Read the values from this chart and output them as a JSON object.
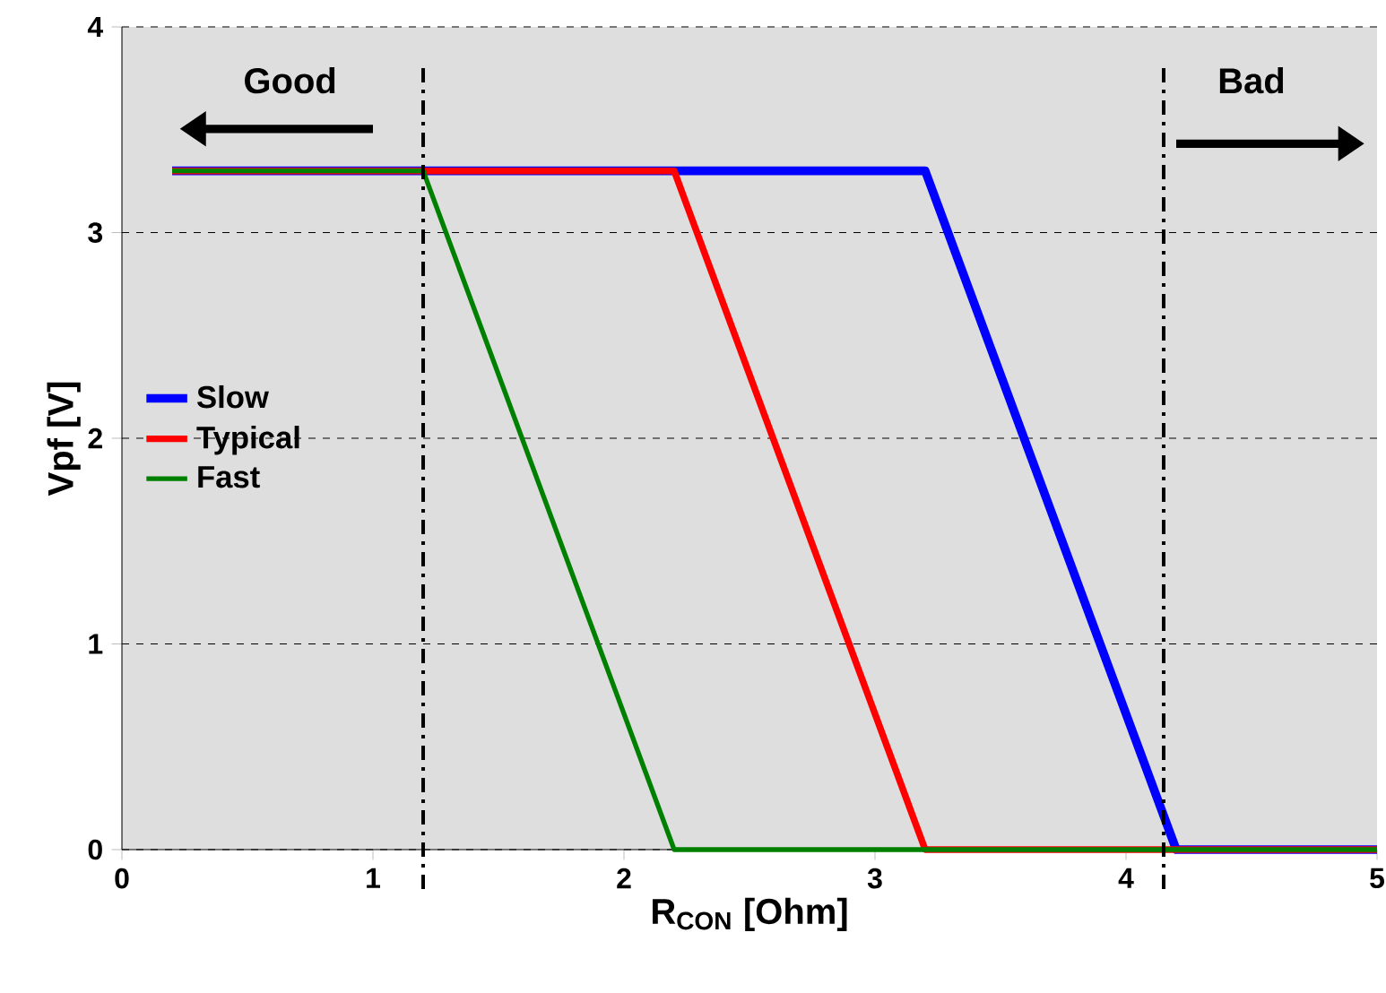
{
  "chart_data": {
    "type": "line",
    "xlabel": "R$_{CON}$ [Ohm]",
    "ylabel": "Vpf [V]",
    "xlim": [
      0,
      5
    ],
    "ylim": [
      0,
      4
    ],
    "xticks": [
      0,
      1,
      2,
      3,
      4,
      5
    ],
    "yticks": [
      0,
      1,
      2,
      3,
      4
    ],
    "grid": "y",
    "legend": "left",
    "line_style": "solid",
    "series": [
      {
        "name": "Slow",
        "color": "#0000ff",
        "x": [
          0.2,
          3.2,
          4.2,
          5
        ],
        "values": [
          3.3,
          3.3,
          0,
          0
        ]
      },
      {
        "name": "Typical",
        "color": "#ff0000",
        "x": [
          0.2,
          2.2,
          3.2,
          5
        ],
        "values": [
          3.3,
          3.3,
          0,
          0
        ]
      },
      {
        "name": "Fast",
        "color": "#008000",
        "x": [
          0.2,
          1.2,
          2.2,
          5
        ],
        "values": [
          3.3,
          3.3,
          0,
          0
        ]
      }
    ],
    "ref_lines": [
      {
        "axis": "x",
        "value": 1.2
      },
      {
        "axis": "x",
        "value": 4.15
      }
    ],
    "annotations": [
      "Good",
      "Bad"
    ]
  }
}
